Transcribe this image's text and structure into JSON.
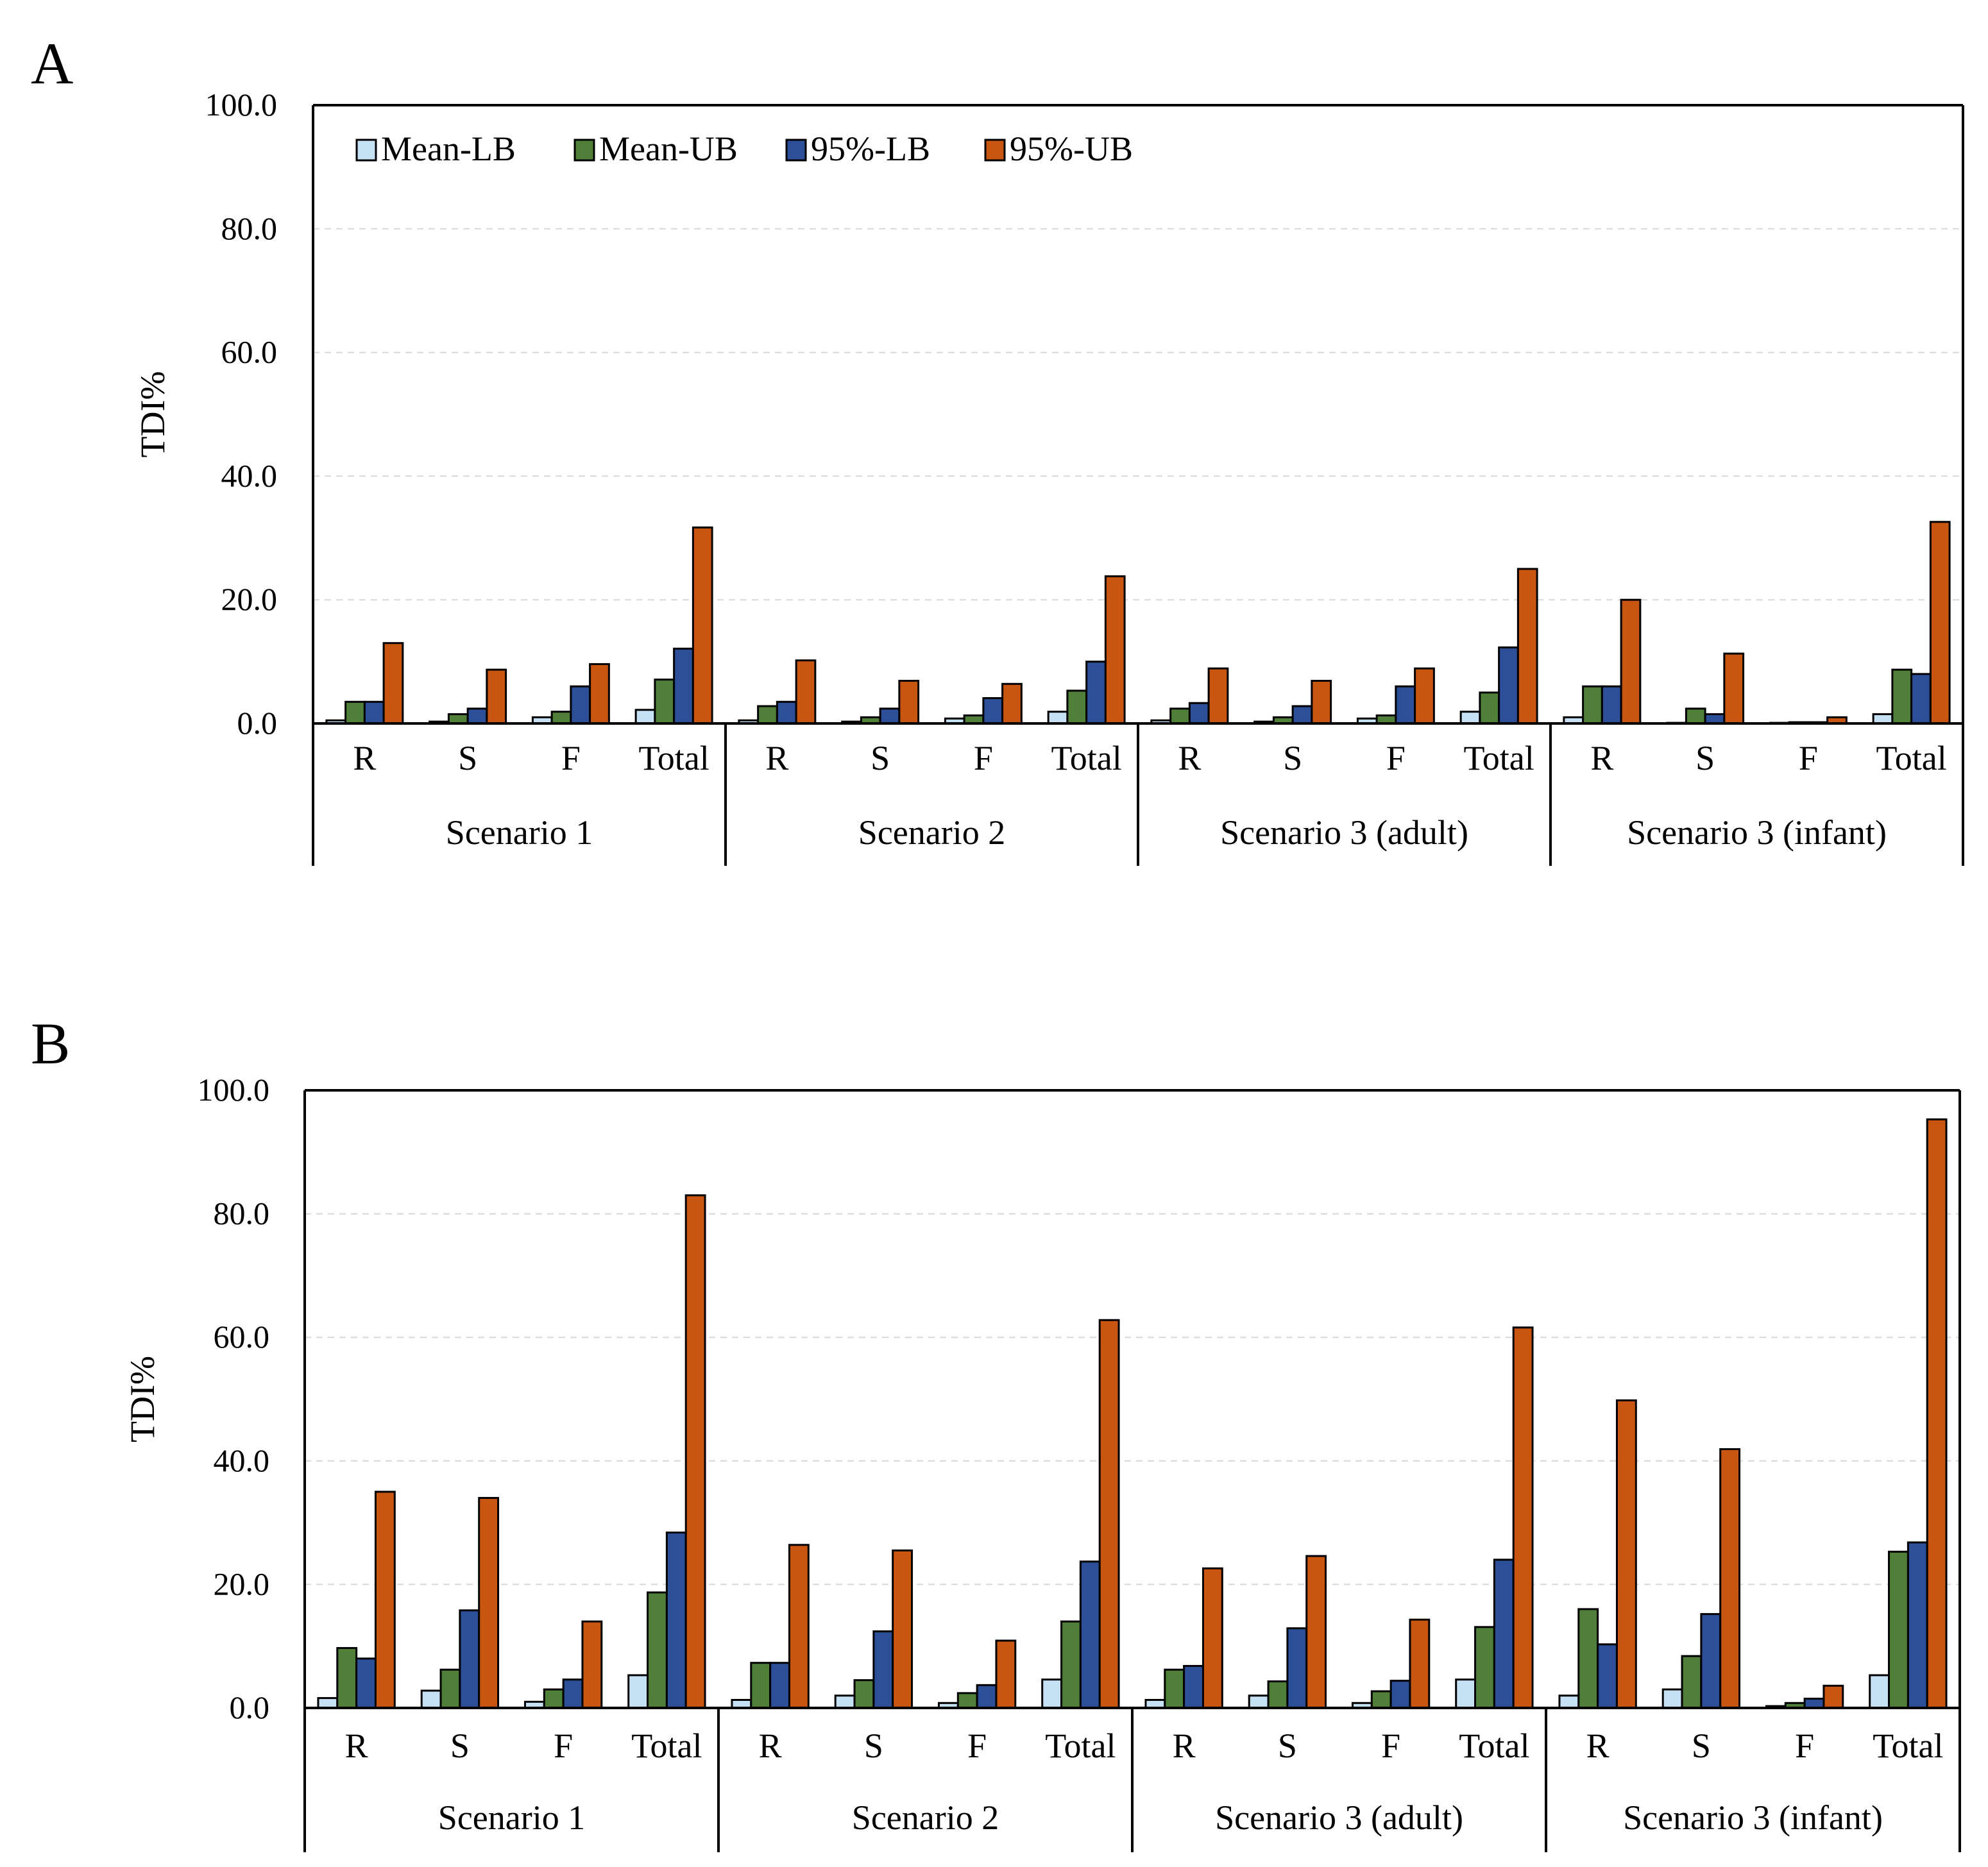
{
  "colors": {
    "Mean-LB": "#c6e0f4",
    "Mean-UB": "#4f7f38",
    "95%-LB": "#2d4f98",
    "95%-UB": "#c85611",
    "gridline": "#d8d8d8",
    "axis": "#000000"
  },
  "chart_data": [
    {
      "panel_label": "A",
      "type": "bar",
      "ylabel": "TDI%",
      "ylim": [
        0,
        100
      ],
      "yticks": [
        "0.0",
        "20.0",
        "40.0",
        "60.0",
        "80.0",
        "100.0"
      ],
      "grid": true,
      "legend": [
        "Mean-LB",
        "Mean-UB",
        "95%-LB",
        "95%-UB"
      ],
      "legend_position": "top-left",
      "groups": [
        "Scenario 1",
        "Scenario 2",
        "Scenario 3 (adult)",
        "Scenario 3 (infant)"
      ],
      "categories": [
        "R",
        "S",
        "F",
        "Total",
        "R",
        "S",
        "F",
        "Total",
        "R",
        "S",
        "F",
        "Total",
        "R",
        "S",
        "F",
        "Total"
      ],
      "series": [
        {
          "name": "Mean-LB",
          "values": [
            0.5,
            0.3,
            1.0,
            2.2,
            0.5,
            0.3,
            0.8,
            1.9,
            0.5,
            0.3,
            0.8,
            1.9,
            1.0,
            0.1,
            0.1,
            1.5
          ]
        },
        {
          "name": "Mean-UB",
          "values": [
            3.5,
            1.5,
            1.9,
            7.1,
            2.8,
            1.0,
            1.3,
            5.3,
            2.4,
            1.0,
            1.3,
            5.0,
            6.0,
            2.4,
            0.2,
            8.7
          ]
        },
        {
          "name": "95%-LB",
          "values": [
            3.5,
            2.4,
            6.0,
            12.1,
            3.5,
            2.4,
            4.1,
            10.0,
            3.3,
            2.8,
            6.0,
            12.3,
            6.0,
            1.5,
            0.2,
            8.0
          ]
        },
        {
          "name": "95%-UB",
          "values": [
            13.0,
            8.7,
            9.6,
            31.7,
            10.2,
            6.9,
            6.4,
            23.8,
            8.9,
            6.9,
            8.9,
            25.0,
            20.0,
            11.3,
            1.0,
            32.6
          ]
        }
      ]
    },
    {
      "panel_label": "B",
      "type": "bar",
      "ylabel": "TDI%",
      "ylim": [
        0,
        100
      ],
      "yticks": [
        "0.0",
        "20.0",
        "40.0",
        "60.0",
        "80.0",
        "100.0"
      ],
      "grid": true,
      "groups": [
        "Scenario 1",
        "Scenario 2",
        "Scenario 3 (adult)",
        "Scenario 3 (infant)"
      ],
      "categories": [
        "R",
        "S",
        "F",
        "Total",
        "R",
        "S",
        "F",
        "Total",
        "R",
        "S",
        "F",
        "Total",
        "R",
        "S",
        "F",
        "Total"
      ],
      "series": [
        {
          "name": "Mean-LB",
          "values": [
            1.6,
            2.8,
            1.0,
            5.3,
            1.3,
            2.0,
            0.8,
            4.6,
            1.3,
            2.0,
            0.8,
            4.6,
            2.0,
            3.0,
            0.3,
            5.3
          ]
        },
        {
          "name": "Mean-UB",
          "values": [
            9.7,
            6.2,
            3.0,
            18.7,
            7.3,
            4.5,
            2.4,
            14.0,
            6.2,
            4.3,
            2.7,
            13.1,
            16.0,
            8.4,
            0.8,
            25.3
          ]
        },
        {
          "name": "95%-LB",
          "values": [
            8.0,
            15.8,
            4.6,
            28.4,
            7.3,
            12.4,
            3.7,
            23.7,
            6.8,
            12.9,
            4.4,
            24.0,
            10.3,
            15.2,
            1.5,
            26.8
          ]
        },
        {
          "name": "95%-UB",
          "values": [
            35.0,
            34.0,
            14.0,
            83.0,
            26.4,
            25.5,
            10.9,
            62.8,
            22.6,
            24.6,
            14.3,
            61.6,
            49.8,
            41.9,
            3.6,
            95.3
          ]
        }
      ]
    }
  ]
}
